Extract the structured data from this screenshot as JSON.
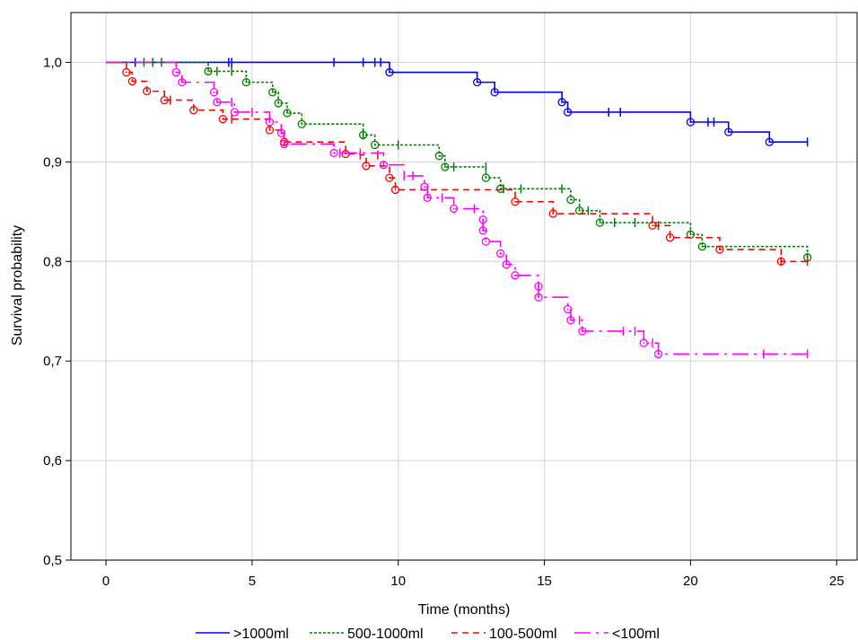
{
  "chart_data": {
    "type": "line",
    "step": true,
    "xlabel": "Time (months)",
    "ylabel": "Survival probability",
    "xlim": [
      -1.2,
      25.7
    ],
    "ylim": [
      0.5,
      1.05
    ],
    "xticks": [
      0,
      5,
      10,
      15,
      20,
      25
    ],
    "xtick_labels": [
      "0",
      "5",
      "10",
      "15",
      "20",
      "25"
    ],
    "yticks": [
      0.5,
      0.6,
      0.7,
      0.8,
      0.9,
      1.0
    ],
    "ytick_labels": [
      "0,5",
      "0,6",
      "0,7",
      "0,8",
      "0,9",
      "1,0"
    ],
    "grid": true,
    "legend_position": "bottom",
    "series": [
      {
        "name": ">1000ml",
        "color": "#0000ff",
        "dash": "solid",
        "steps": [
          [
            0,
            1.0
          ],
          [
            9.7,
            0.99
          ],
          [
            12.7,
            0.98
          ],
          [
            13.3,
            0.97
          ],
          [
            15.6,
            0.96
          ],
          [
            15.8,
            0.95
          ],
          [
            20.0,
            0.94
          ],
          [
            21.3,
            0.93
          ],
          [
            22.7,
            0.92
          ],
          [
            24.0,
            0.92
          ]
        ],
        "events": [
          [
            9.7,
            0.99
          ],
          [
            12.7,
            0.98
          ],
          [
            13.3,
            0.97
          ],
          [
            15.6,
            0.96
          ],
          [
            15.8,
            0.95
          ],
          [
            20.0,
            0.94
          ],
          [
            21.3,
            0.93
          ],
          [
            22.7,
            0.92
          ]
        ],
        "censored": [
          [
            1.0,
            1.0
          ],
          [
            4.2,
            1.0
          ],
          [
            4.3,
            1.0
          ],
          [
            7.8,
            1.0
          ],
          [
            8.8,
            1.0
          ],
          [
            9.2,
            1.0
          ],
          [
            9.4,
            1.0
          ],
          [
            17.2,
            0.95
          ],
          [
            17.6,
            0.95
          ],
          [
            20.6,
            0.94
          ],
          [
            20.8,
            0.94
          ],
          [
            24.0,
            0.92
          ]
        ]
      },
      {
        "name": "500-1000ml",
        "color": "#008000",
        "dash": "3,2",
        "steps": [
          [
            0,
            1.0
          ],
          [
            3.5,
            0.991
          ],
          [
            4.8,
            0.98
          ],
          [
            5.7,
            0.97
          ],
          [
            5.9,
            0.959
          ],
          [
            6.2,
            0.949
          ],
          [
            6.7,
            0.938
          ],
          [
            8.8,
            0.927
          ],
          [
            9.2,
            0.917
          ],
          [
            11.4,
            0.906
          ],
          [
            11.6,
            0.895
          ],
          [
            13.0,
            0.884
          ],
          [
            13.5,
            0.873
          ],
          [
            15.9,
            0.862
          ],
          [
            16.2,
            0.851
          ],
          [
            16.9,
            0.839
          ],
          [
            20.0,
            0.827
          ],
          [
            20.4,
            0.815
          ],
          [
            24.0,
            0.804
          ]
        ],
        "events": [
          [
            3.5,
            0.991
          ],
          [
            4.8,
            0.98
          ],
          [
            5.7,
            0.97
          ],
          [
            5.9,
            0.959
          ],
          [
            6.2,
            0.949
          ],
          [
            6.7,
            0.938
          ],
          [
            8.8,
            0.927
          ],
          [
            9.2,
            0.917
          ],
          [
            11.4,
            0.906
          ],
          [
            11.6,
            0.895
          ],
          [
            13.0,
            0.884
          ],
          [
            13.5,
            0.873
          ],
          [
            15.9,
            0.862
          ],
          [
            16.2,
            0.851
          ],
          [
            16.9,
            0.839
          ],
          [
            20.0,
            0.827
          ],
          [
            20.4,
            0.815
          ],
          [
            24.0,
            0.804
          ]
        ],
        "censored": [
          [
            1.3,
            1.0
          ],
          [
            1.6,
            1.0
          ],
          [
            1.9,
            1.0
          ],
          [
            3.8,
            0.991
          ],
          [
            4.3,
            0.991
          ],
          [
            8.8,
            0.927
          ],
          [
            10.0,
            0.917
          ],
          [
            11.9,
            0.895
          ],
          [
            13.0,
            0.895
          ],
          [
            13.6,
            0.873
          ],
          [
            14.2,
            0.873
          ],
          [
            15.6,
            0.873
          ],
          [
            16.5,
            0.851
          ],
          [
            17.4,
            0.839
          ],
          [
            18.1,
            0.839
          ],
          [
            24.0,
            0.804
          ]
        ]
      },
      {
        "name": "100-500ml",
        "color": "#ff0000",
        "dash": "7,5",
        "steps": [
          [
            0,
            1.0
          ],
          [
            0.7,
            0.99
          ],
          [
            0.9,
            0.981
          ],
          [
            1.4,
            0.971
          ],
          [
            2.0,
            0.962
          ],
          [
            3.0,
            0.952
          ],
          [
            4.0,
            0.943
          ],
          [
            5.6,
            0.932
          ],
          [
            6.1,
            0.92
          ],
          [
            8.2,
            0.908
          ],
          [
            8.7,
            0.907
          ],
          [
            8.9,
            0.896
          ],
          [
            9.7,
            0.884
          ],
          [
            9.9,
            0.872
          ],
          [
            14.0,
            0.86
          ],
          [
            15.3,
            0.848
          ],
          [
            18.7,
            0.836
          ],
          [
            19.3,
            0.824
          ],
          [
            21.0,
            0.812
          ],
          [
            23.1,
            0.8
          ],
          [
            24.0,
            0.8
          ]
        ],
        "events": [
          [
            0.7,
            0.99
          ],
          [
            0.9,
            0.981
          ],
          [
            1.4,
            0.971
          ],
          [
            2.0,
            0.962
          ],
          [
            3.0,
            0.952
          ],
          [
            4.0,
            0.943
          ],
          [
            5.6,
            0.932
          ],
          [
            6.1,
            0.92
          ],
          [
            8.2,
            0.908
          ],
          [
            8.9,
            0.896
          ],
          [
            9.7,
            0.884
          ],
          [
            9.9,
            0.872
          ],
          [
            14.0,
            0.86
          ],
          [
            15.3,
            0.848
          ],
          [
            18.7,
            0.836
          ],
          [
            19.3,
            0.824
          ],
          [
            21.0,
            0.812
          ],
          [
            23.1,
            0.8
          ]
        ],
        "censored": [
          [
            2.2,
            0.962
          ],
          [
            4.3,
            0.943
          ],
          [
            6.0,
            0.932
          ],
          [
            8.7,
            0.907
          ],
          [
            9.3,
            0.907
          ],
          [
            18.9,
            0.836
          ],
          [
            23.1,
            0.8
          ],
          [
            24.0,
            0.8
          ]
        ]
      },
      {
        "name": "<100ml",
        "color": "#ff00ff",
        "dash": "18,6,3,6",
        "steps": [
          [
            0,
            1.0
          ],
          [
            2.4,
            0.99
          ],
          [
            2.6,
            0.98
          ],
          [
            3.7,
            0.97
          ],
          [
            3.8,
            0.96
          ],
          [
            4.4,
            0.95
          ],
          [
            5.6,
            0.94
          ],
          [
            6.0,
            0.929
          ],
          [
            6.1,
            0.918
          ],
          [
            7.8,
            0.909
          ],
          [
            9.5,
            0.897
          ],
          [
            10.2,
            0.886
          ],
          [
            10.9,
            0.875
          ],
          [
            11.0,
            0.864
          ],
          [
            11.9,
            0.853
          ],
          [
            12.9,
            0.842
          ],
          [
            12.9,
            0.831
          ],
          [
            13.0,
            0.82
          ],
          [
            13.5,
            0.808
          ],
          [
            13.7,
            0.797
          ],
          [
            14.0,
            0.786
          ],
          [
            14.8,
            0.775
          ],
          [
            14.8,
            0.764
          ],
          [
            15.8,
            0.752
          ],
          [
            15.9,
            0.741
          ],
          [
            16.3,
            0.73
          ],
          [
            18.4,
            0.718
          ],
          [
            18.9,
            0.707
          ],
          [
            24.0,
            0.707
          ]
        ],
        "events": [
          [
            2.4,
            0.99
          ],
          [
            2.6,
            0.98
          ],
          [
            3.7,
            0.97
          ],
          [
            3.8,
            0.96
          ],
          [
            4.4,
            0.95
          ],
          [
            5.6,
            0.94
          ],
          [
            6.0,
            0.929
          ],
          [
            6.1,
            0.918
          ],
          [
            7.8,
            0.909
          ],
          [
            9.5,
            0.897
          ],
          [
            10.9,
            0.875
          ],
          [
            11.0,
            0.864
          ],
          [
            11.9,
            0.853
          ],
          [
            12.9,
            0.842
          ],
          [
            12.9,
            0.831
          ],
          [
            13.0,
            0.82
          ],
          [
            13.5,
            0.808
          ],
          [
            13.7,
            0.797
          ],
          [
            14.0,
            0.786
          ],
          [
            14.8,
            0.775
          ],
          [
            14.8,
            0.764
          ],
          [
            15.8,
            0.752
          ],
          [
            15.9,
            0.741
          ],
          [
            16.3,
            0.73
          ],
          [
            18.4,
            0.718
          ],
          [
            18.9,
            0.707
          ]
        ],
        "censored": [
          [
            4.3,
            0.96
          ],
          [
            5.0,
            0.95
          ],
          [
            8.0,
            0.909
          ],
          [
            8.7,
            0.909
          ],
          [
            10.2,
            0.886
          ],
          [
            10.5,
            0.886
          ],
          [
            11.5,
            0.864
          ],
          [
            12.6,
            0.853
          ],
          [
            16.2,
            0.741
          ],
          [
            17.7,
            0.73
          ],
          [
            18.1,
            0.73
          ],
          [
            18.7,
            0.718
          ],
          [
            22.5,
            0.707
          ],
          [
            24.0,
            0.707
          ]
        ]
      }
    ]
  }
}
